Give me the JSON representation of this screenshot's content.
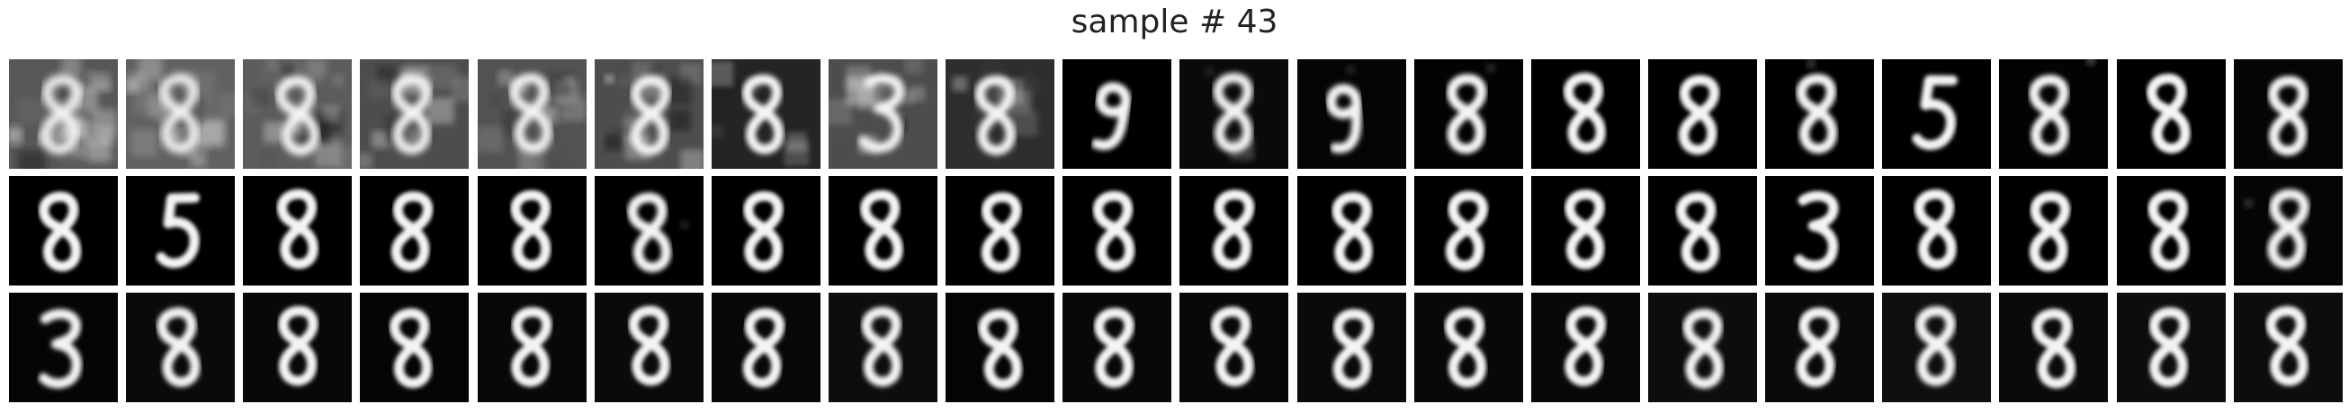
{
  "title": "sample # 43",
  "grid": {
    "rows": 3,
    "cols": 20
  },
  "tiles": [
    [
      {
        "digit": "8",
        "bg": 0.34,
        "noise": 0.55,
        "blur": 2.6
      },
      {
        "digit": "8",
        "bg": 0.38,
        "noise": 0.5,
        "blur": 2.6
      },
      {
        "digit": "8",
        "bg": 0.36,
        "noise": 0.45,
        "blur": 2.4
      },
      {
        "digit": "8",
        "bg": 0.3,
        "noise": 0.4,
        "blur": 2.4
      },
      {
        "digit": "8",
        "bg": 0.32,
        "noise": 0.4,
        "blur": 2.4
      },
      {
        "digit": "8",
        "bg": 0.3,
        "noise": 0.35,
        "blur": 2.2
      },
      {
        "digit": "8",
        "bg": 0.14,
        "noise": 0.2,
        "blur": 1.8
      },
      {
        "digit": "3",
        "bg": 0.3,
        "noise": 0.35,
        "blur": 2.2
      },
      {
        "digit": "8",
        "bg": 0.18,
        "noise": 0.25,
        "blur": 2.0
      },
      {
        "digit": "9",
        "bg": 0.0,
        "noise": 0.0,
        "blur": 1.6
      },
      {
        "digit": "8",
        "bg": 0.04,
        "noise": 0.08,
        "blur": 2.0
      },
      {
        "digit": "9",
        "bg": 0.02,
        "noise": 0.05,
        "blur": 1.8
      },
      {
        "digit": "8",
        "bg": 0.01,
        "noise": 0.03,
        "blur": 1.6
      },
      {
        "digit": "8",
        "bg": 0.0,
        "noise": 0.0,
        "blur": 1.5
      },
      {
        "digit": "8",
        "bg": 0.0,
        "noise": 0.0,
        "blur": 1.5
      },
      {
        "digit": "8",
        "bg": 0.0,
        "noise": 0.02,
        "blur": 1.7
      },
      {
        "digit": "5",
        "bg": 0.0,
        "noise": 0.0,
        "blur": 1.5
      },
      {
        "digit": "8",
        "bg": 0.01,
        "noise": 0.03,
        "blur": 1.7
      },
      {
        "digit": "8",
        "bg": 0.0,
        "noise": 0.0,
        "blur": 1.4
      },
      {
        "digit": "8",
        "bg": 0.02,
        "noise": 0.02,
        "blur": 1.6
      }
    ],
    [
      {
        "digit": "8",
        "bg": 0.0,
        "noise": 0.0,
        "blur": 1.4
      },
      {
        "digit": "5",
        "bg": 0.0,
        "noise": 0.0,
        "blur": 1.4
      },
      {
        "digit": "8",
        "bg": 0.0,
        "noise": 0.0,
        "blur": 1.4
      },
      {
        "digit": "8",
        "bg": 0.0,
        "noise": 0.0,
        "blur": 1.4
      },
      {
        "digit": "8",
        "bg": 0.0,
        "noise": 0.0,
        "blur": 1.4
      },
      {
        "digit": "8",
        "bg": 0.0,
        "noise": 0.02,
        "blur": 1.6
      },
      {
        "digit": "8",
        "bg": 0.0,
        "noise": 0.0,
        "blur": 1.4
      },
      {
        "digit": "8",
        "bg": 0.0,
        "noise": 0.0,
        "blur": 1.4
      },
      {
        "digit": "8",
        "bg": 0.0,
        "noise": 0.0,
        "blur": 1.4
      },
      {
        "digit": "8",
        "bg": 0.0,
        "noise": 0.0,
        "blur": 1.4
      },
      {
        "digit": "8",
        "bg": 0.0,
        "noise": 0.0,
        "blur": 1.4
      },
      {
        "digit": "8",
        "bg": 0.0,
        "noise": 0.0,
        "blur": 1.4
      },
      {
        "digit": "8",
        "bg": 0.0,
        "noise": 0.0,
        "blur": 1.4
      },
      {
        "digit": "8",
        "bg": 0.0,
        "noise": 0.0,
        "blur": 1.4
      },
      {
        "digit": "8",
        "bg": 0.0,
        "noise": 0.0,
        "blur": 1.4
      },
      {
        "digit": "3",
        "bg": 0.0,
        "noise": 0.0,
        "blur": 1.4
      },
      {
        "digit": "8",
        "bg": 0.0,
        "noise": 0.0,
        "blur": 1.4
      },
      {
        "digit": "8",
        "bg": 0.0,
        "noise": 0.0,
        "blur": 1.4
      },
      {
        "digit": "8",
        "bg": 0.0,
        "noise": 0.0,
        "blur": 1.4
      },
      {
        "digit": "8",
        "bg": 0.02,
        "noise": 0.03,
        "blur": 1.8
      }
    ],
    [
      {
        "digit": "3",
        "bg": 0.02,
        "noise": 0.0,
        "blur": 1.6
      },
      {
        "digit": "8",
        "bg": 0.04,
        "noise": 0.0,
        "blur": 1.6
      },
      {
        "digit": "8",
        "bg": 0.03,
        "noise": 0.0,
        "blur": 1.5
      },
      {
        "digit": "8",
        "bg": 0.02,
        "noise": 0.0,
        "blur": 1.5
      },
      {
        "digit": "8",
        "bg": 0.03,
        "noise": 0.0,
        "blur": 1.5
      },
      {
        "digit": "8",
        "bg": 0.04,
        "noise": 0.0,
        "blur": 1.5
      },
      {
        "digit": "8",
        "bg": 0.03,
        "noise": 0.0,
        "blur": 1.5
      },
      {
        "digit": "8",
        "bg": 0.05,
        "noise": 0.0,
        "blur": 1.6
      },
      {
        "digit": "8",
        "bg": 0.02,
        "noise": 0.0,
        "blur": 1.5
      },
      {
        "digit": "8",
        "bg": 0.03,
        "noise": 0.0,
        "blur": 1.5
      },
      {
        "digit": "8",
        "bg": 0.03,
        "noise": 0.0,
        "blur": 1.5
      },
      {
        "digit": "8",
        "bg": 0.04,
        "noise": 0.0,
        "blur": 1.5
      },
      {
        "digit": "8",
        "bg": 0.03,
        "noise": 0.0,
        "blur": 1.5
      },
      {
        "digit": "8",
        "bg": 0.03,
        "noise": 0.0,
        "blur": 1.5
      },
      {
        "digit": "8",
        "bg": 0.05,
        "noise": 0.0,
        "blur": 1.6
      },
      {
        "digit": "8",
        "bg": 0.04,
        "noise": 0.0,
        "blur": 1.5
      },
      {
        "digit": "8",
        "bg": 0.06,
        "noise": 0.0,
        "blur": 1.6
      },
      {
        "digit": "8",
        "bg": 0.04,
        "noise": 0.0,
        "blur": 1.5
      },
      {
        "digit": "8",
        "bg": 0.05,
        "noise": 0.0,
        "blur": 1.5
      },
      {
        "digit": "8",
        "bg": 0.05,
        "noise": 0.0,
        "blur": 1.5
      }
    ]
  ]
}
